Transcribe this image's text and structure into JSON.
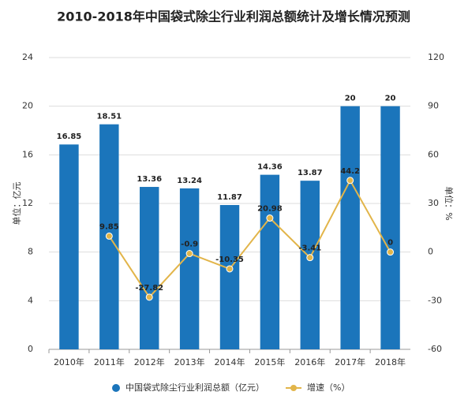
{
  "chart_data": {
    "type": "combo",
    "title": "2010-2018年中国袋式除尘行业利润总额统计及增长情况预测",
    "categories": [
      "2010年",
      "2011年",
      "2012年",
      "2013年",
      "2014年",
      "2015年",
      "2016年",
      "2017年",
      "2018年"
    ],
    "ylabel": "单位：亿元",
    "y2label": "单位：%",
    "ylim": [
      0,
      24
    ],
    "yticks": [
      0,
      4,
      8,
      12,
      16,
      20,
      24
    ],
    "y2lim": [
      -60,
      120
    ],
    "y2ticks": [
      -60,
      -30,
      0,
      30,
      60,
      90,
      120
    ],
    "grid": true,
    "legend": "bottom",
    "series": [
      {
        "name": "中国袋式除尘行业利润总额（亿元）",
        "type": "bar",
        "color": "#1b75bb",
        "values": [
          16.85,
          18.51,
          13.36,
          13.24,
          11.87,
          14.36,
          13.87,
          20,
          20
        ]
      },
      {
        "name": "增速（%）",
        "type": "line",
        "axis": "y2",
        "color": "#e2b54a",
        "values": [
          null,
          9.85,
          -27.82,
          -0.9,
          -10.35,
          20.98,
          -3.41,
          44.2,
          0
        ]
      }
    ]
  }
}
